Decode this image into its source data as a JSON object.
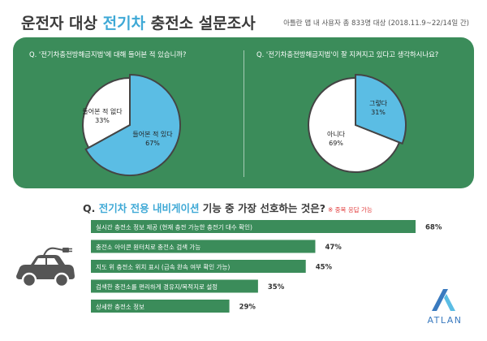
{
  "header": {
    "title_pre": "운전자 대상 ",
    "title_accent": "전기차",
    "title_post": " 충전소 설문조사",
    "subtitle": "아틀란 맵 내 사용자 총 833명 대상 (2018.11.9~22/14일 간)"
  },
  "colors": {
    "green": "#3b8c5a",
    "blue": "#5bbde4",
    "white": "#ffffff",
    "accent": "#3fa9d6"
  },
  "chart_data": [
    {
      "type": "pie",
      "question": "Q. '전기차충전방해금지법'에 대해 들어본 적 있습니까?",
      "slices": [
        {
          "label": "들어본 적 있다",
          "value": 67,
          "pct": "67%",
          "color": "#5bbde4"
        },
        {
          "label": "들어본 적 없다",
          "value": 33,
          "pct": "33%",
          "color": "#ffffff"
        }
      ]
    },
    {
      "type": "pie",
      "question": "Q. '전기차충전방해금지법'이 잘 지켜지고 있다고 생각하시나요?",
      "slices": [
        {
          "label": "그렇다",
          "value": 31,
          "pct": "31%",
          "color": "#5bbde4"
        },
        {
          "label": "아니다",
          "value": 69,
          "pct": "69%",
          "color": "#ffffff"
        }
      ]
    },
    {
      "type": "bar",
      "question_pre": "Q. ",
      "question_accent": "전기차 전용 내비게이션",
      "question_post": " 기능 중 가장 선호하는 것은?",
      "note": "※ 중복 응답 가능",
      "categories": [
        "실시간 충전소 정보 제공 (현재 충전 가능한 충전기 대수 확인)",
        "충전소 아이콘 원터치로 충전소 검색 가능",
        "지도 위 충전소 위치 표시 (급속 완속 여부 확인 가능)",
        "검색한 충전소를 편리하게 경유지/목적지로 설정",
        "상세한 충전소 정보"
      ],
      "values": [
        68,
        47,
        45,
        35,
        29
      ],
      "value_labels": [
        "68%",
        "47%",
        "45%",
        "35%",
        "29%"
      ],
      "color": "#3b8c5a"
    }
  ],
  "logo": {
    "text": "ATLAN",
    "icon": "atlan-logo-icon"
  },
  "car": {
    "icon": "electric-car-icon"
  }
}
